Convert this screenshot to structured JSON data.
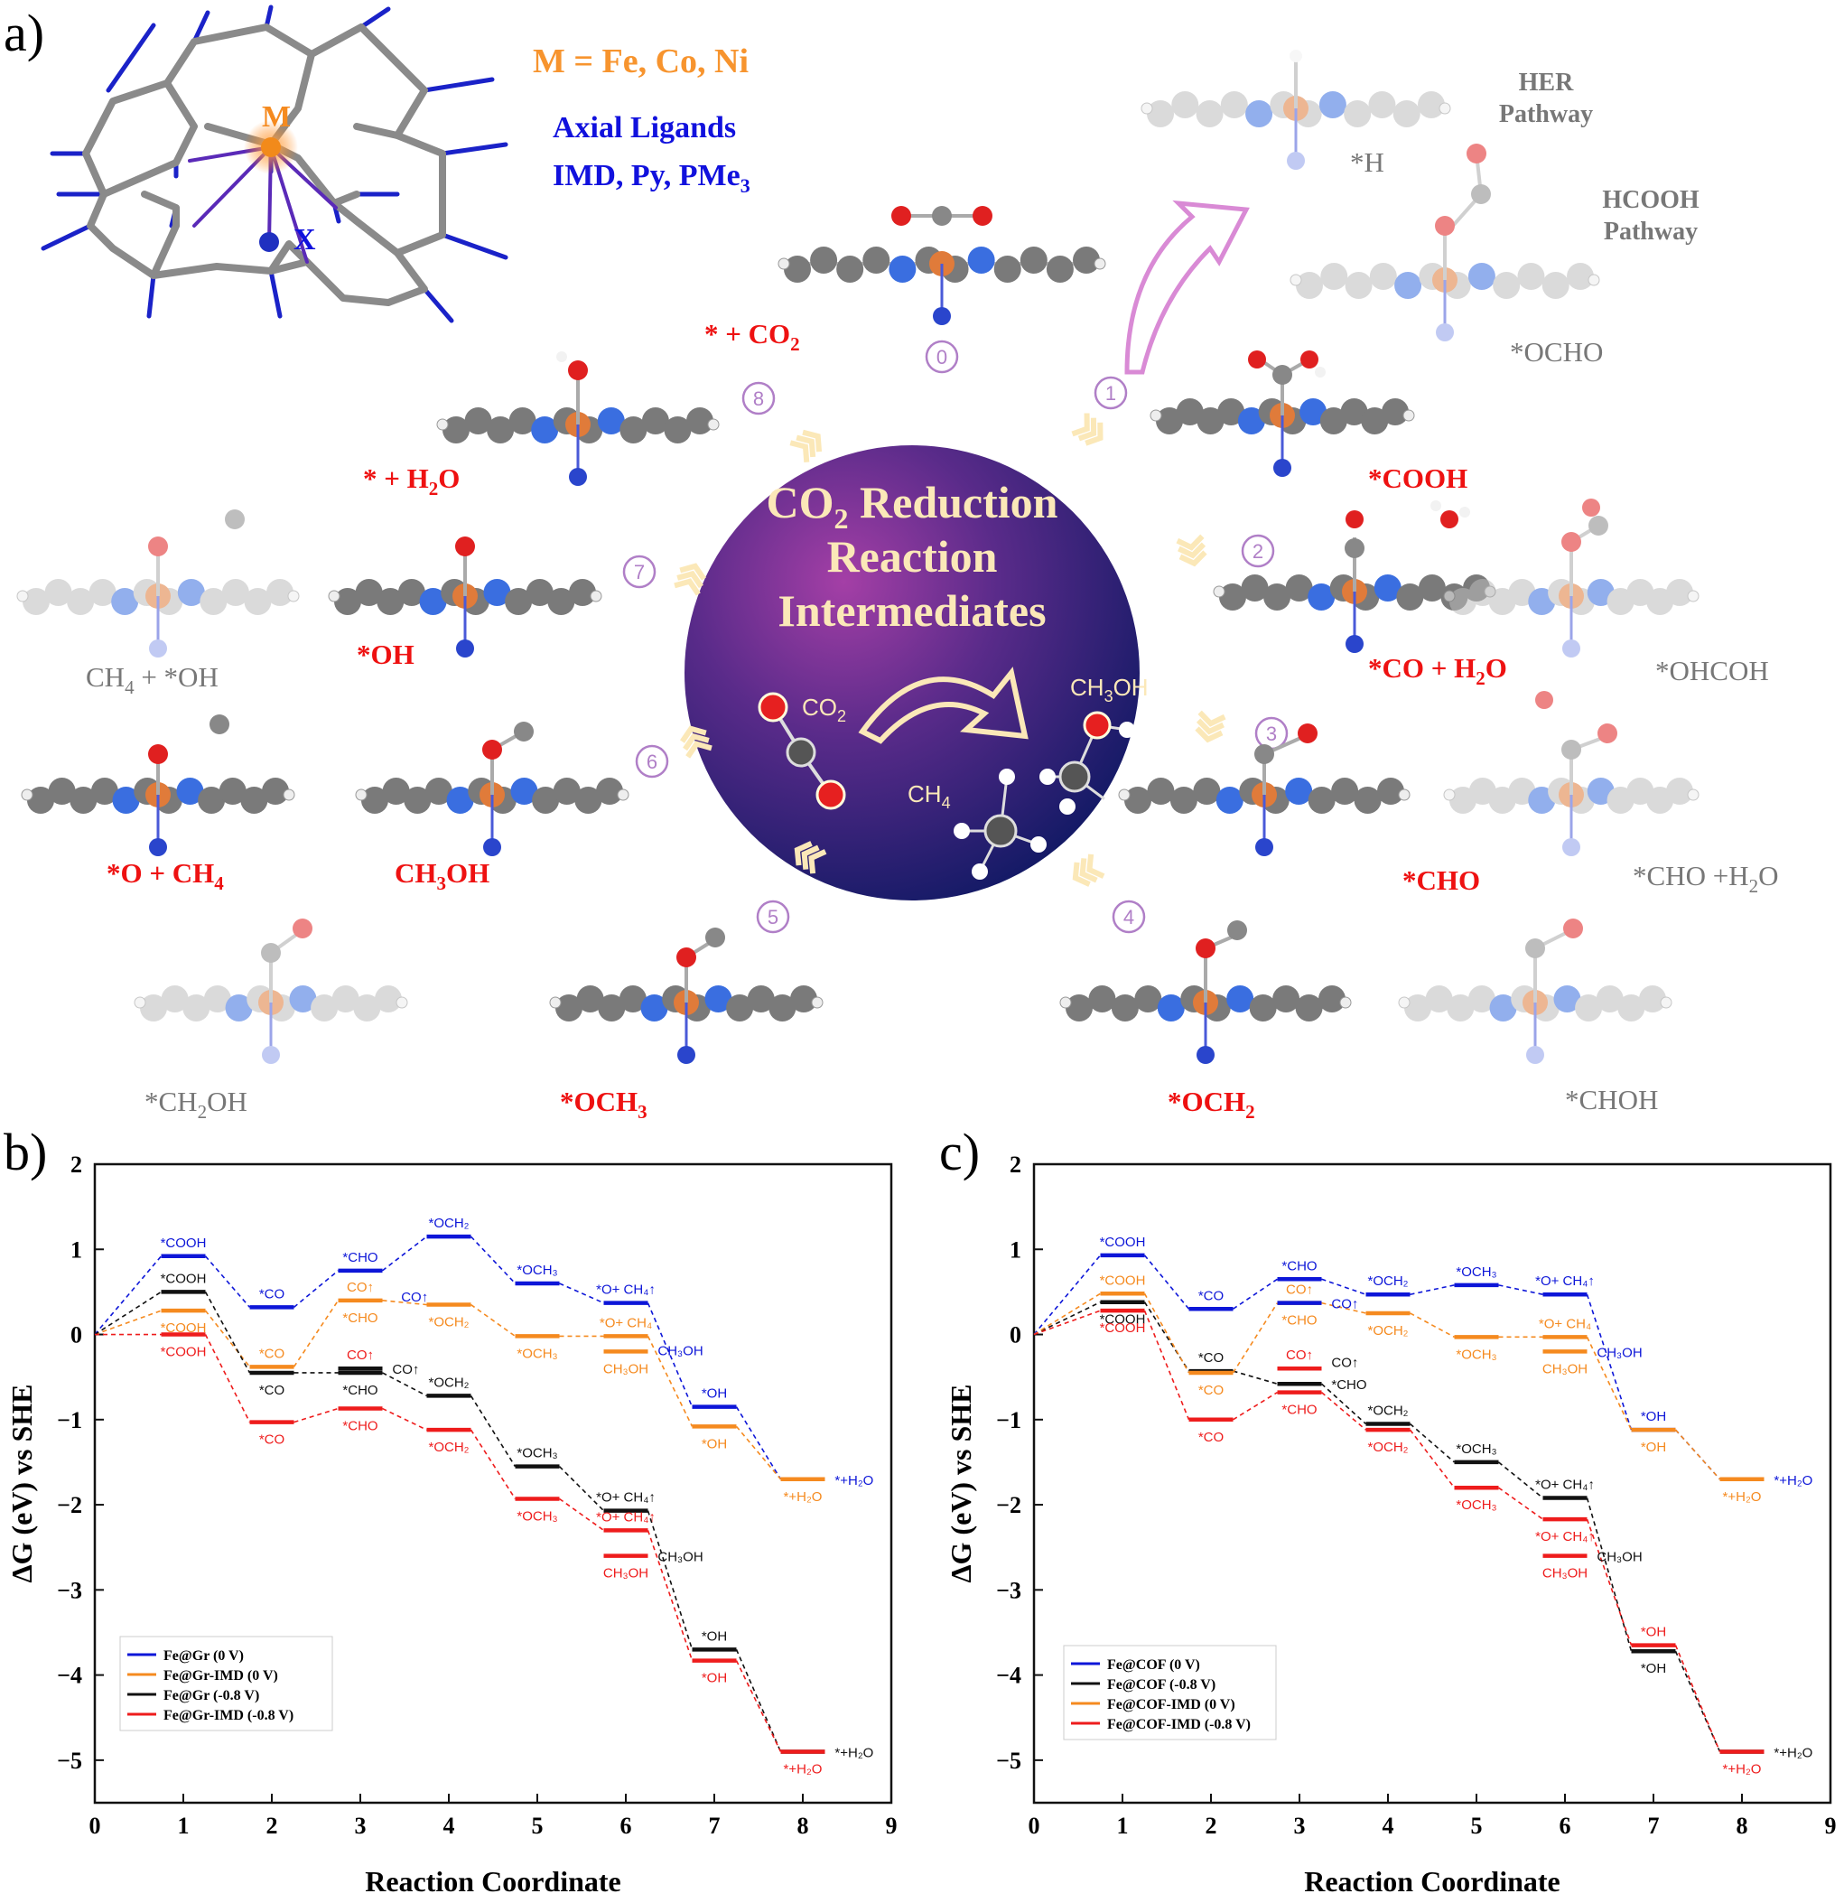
{
  "colors": {
    "red": "#ee1111",
    "gray": "#777777",
    "orange": "#f7942e",
    "blue": "#1111dd",
    "purple": "#b07fc7",
    "navy": "#1a1f6e",
    "magenta": "#7a2a8a",
    "cream": "#fbe8b8",
    "black": "#111111",
    "chart_blue": "#0d16d8",
    "chart_orange": "#f58a1f",
    "chart_red": "#ee1c1c"
  },
  "panel_a": {
    "label": "a)",
    "metal_label": "M",
    "metal_eq": "M = Fe, Co, Ni",
    "axial_title": "Axial Ligands",
    "axial_list": "IMD, Py, PMe",
    "axial_sub": "3",
    "x_label": "X",
    "circle_title": [
      "CO",
      "2",
      " Reduction",
      "Reaction",
      "Intermediates"
    ],
    "inner": {
      "co2": [
        "CO",
        "2"
      ],
      "ch3oh": [
        "CH",
        "3",
        "OH"
      ],
      "ch4": [
        "CH",
        "4"
      ]
    },
    "steps": [
      "0",
      "1",
      "2",
      "3",
      "4",
      "5",
      "6",
      "7",
      "8"
    ],
    "labels": {
      "co2": [
        "* + CO",
        "2"
      ],
      "h2o": [
        "* + H",
        "2",
        "O"
      ],
      "cooh": "*COOH",
      "co_h2o": [
        "*CO + H",
        "2",
        "O"
      ],
      "cho": "*CHO",
      "och2": [
        "*OCH",
        "2"
      ],
      "och3": [
        "*OCH",
        "3"
      ],
      "ch3oh": [
        "CH",
        "3",
        "OH"
      ],
      "o_ch4": [
        "*O + CH",
        "4"
      ],
      "oh": "*OH",
      "ch4_oh": [
        "CH",
        "4",
        " + *OH"
      ],
      "ch2oh": [
        "*CH",
        "2",
        "OH"
      ],
      "choh": "*CHOH",
      "cho_h2o": [
        "*CHO +H",
        "2",
        "O"
      ],
      "ohcoh": "*OHCOH",
      "ocho": "*OCHO",
      "h": "*H",
      "her": [
        "HER",
        "Pathway"
      ],
      "hcooh": [
        "HCOOH",
        "Pathway"
      ]
    }
  },
  "panel_b": {
    "label": "b)",
    "chart_data": {
      "type": "line",
      "xlabel": "Reaction Coordinate",
      "ylabel": "ΔG (eV) vs SHE",
      "xlim": [
        0,
        9
      ],
      "ylim": [
        -5.5,
        2
      ],
      "xticks": [
        "0",
        "1",
        "2",
        "3",
        "4",
        "5",
        "6",
        "7",
        "8",
        "9"
      ],
      "yticks": [
        "2",
        "1",
        "0",
        "−1",
        "−2",
        "−3",
        "−4",
        "−5"
      ],
      "legend": [
        "Fe@Gr (0 V)",
        "Fe@Gr-IMD (0 V)",
        "Fe@Gr (-0.8 V)",
        "Fe@Gr-IMD (-0.8 V)"
      ],
      "legend_position": "bottom-left",
      "series": [
        {
          "name": "Fe@Gr (0 V)",
          "color": "blue",
          "values": [
            0,
            0.92,
            0.32,
            0.75,
            1.15,
            0.6,
            0.37,
            -0.85,
            -1.7
          ]
        },
        {
          "name": "Fe@Gr-IMD (0 V)",
          "color": "orange",
          "values": [
            0,
            0.28,
            -0.38,
            0.4,
            0.35,
            -0.02,
            -0.02,
            -1.08,
            -1.7
          ]
        },
        {
          "name": "Fe@Gr (-0.8 V)",
          "color": "black",
          "values": [
            0,
            0.5,
            -0.45,
            -0.45,
            -0.72,
            -1.55,
            -2.07,
            -3.7,
            -4.9
          ]
        },
        {
          "name": "Fe@Gr-IMD (-0.8 V)",
          "color": "red",
          "values": [
            0,
            0,
            -1.03,
            -0.87,
            -1.12,
            -1.93,
            -2.3,
            -3.83,
            -4.9
          ]
        }
      ],
      "extra_levels": [
        {
          "color": "orange",
          "x": 6,
          "y": -0.2
        },
        {
          "color": "black",
          "x": 3,
          "y": -0.4
        },
        {
          "color": "red",
          "x": 6,
          "y": -2.6
        }
      ],
      "annotations": [
        {
          "t": "*COOH",
          "x": 1,
          "y": 0.92,
          "pos": "a",
          "c": "blue"
        },
        {
          "t": "*CO",
          "x": 2,
          "y": 0.32,
          "pos": "a",
          "c": "blue"
        },
        {
          "t": "*CHO",
          "x": 3,
          "y": 0.75,
          "pos": "a",
          "c": "blue"
        },
        {
          "t": "CO↑",
          "x": 3.4,
          "y": 0.45,
          "pos": "r",
          "c": "blue"
        },
        {
          "t": "*OCH₂",
          "x": 4,
          "y": 1.15,
          "pos": "a",
          "c": "blue"
        },
        {
          "t": "*OCH₃",
          "x": 5,
          "y": 0.6,
          "pos": "a",
          "c": "blue"
        },
        {
          "t": "*O+ CH₄↑",
          "x": 6,
          "y": 0.37,
          "pos": "a",
          "c": "blue"
        },
        {
          "t": "CH₃OH",
          "x": 6.3,
          "y": -0.18,
          "pos": "r",
          "c": "blue"
        },
        {
          "t": "*OH",
          "x": 7,
          "y": -0.85,
          "pos": "a",
          "c": "blue"
        },
        {
          "t": "*+H₂O",
          "x": 8.3,
          "y": -1.7,
          "pos": "r",
          "c": "blue"
        },
        {
          "t": "*COOH",
          "x": 1,
          "y": 0.28,
          "pos": "b",
          "c": "orange"
        },
        {
          "t": "*CO",
          "x": 2,
          "y": -0.38,
          "pos": "a",
          "c": "orange"
        },
        {
          "t": "CO↑",
          "x": 3,
          "y": 0.4,
          "pos": "a",
          "c": "orange"
        },
        {
          "t": "*CHO",
          "x": 3,
          "y": 0.4,
          "pos": "b",
          "c": "orange"
        },
        {
          "t": "*OCH₂",
          "x": 4,
          "y": 0.35,
          "pos": "b",
          "c": "orange"
        },
        {
          "t": "*OCH₃",
          "x": 5,
          "y": -0.02,
          "pos": "b",
          "c": "orange"
        },
        {
          "t": "*O+ CH₄",
          "x": 6,
          "y": -0.02,
          "pos": "a",
          "c": "orange"
        },
        {
          "t": "CH₃OH",
          "x": 6,
          "y": -0.2,
          "pos": "b",
          "c": "orange"
        },
        {
          "t": "*OH",
          "x": 7,
          "y": -1.08,
          "pos": "b",
          "c": "orange"
        },
        {
          "t": "*+H₂O",
          "x": 8,
          "y": -1.7,
          "pos": "b",
          "c": "orange"
        },
        {
          "t": "*COOH",
          "x": 1,
          "y": 0.5,
          "pos": "a",
          "c": "black"
        },
        {
          "t": "*CO",
          "x": 2,
          "y": -0.45,
          "pos": "b",
          "c": "black"
        },
        {
          "t": "CO↑",
          "x": 3.3,
          "y": -0.4,
          "pos": "r",
          "c": "black"
        },
        {
          "t": "*CHO",
          "x": 3,
          "y": -0.45,
          "pos": "b",
          "c": "black"
        },
        {
          "t": "*OCH₂",
          "x": 4,
          "y": -0.72,
          "pos": "a",
          "c": "black"
        },
        {
          "t": "*OCH₃",
          "x": 5,
          "y": -1.55,
          "pos": "a",
          "c": "black"
        },
        {
          "t": "*O+ CH₄↑",
          "x": 6,
          "y": -2.07,
          "pos": "a",
          "c": "black"
        },
        {
          "t": "CH₃OH",
          "x": 6.3,
          "y": -2.6,
          "pos": "r",
          "c": "black"
        },
        {
          "t": "*OH",
          "x": 7,
          "y": -3.7,
          "pos": "a",
          "c": "black"
        },
        {
          "t": "*+H₂O",
          "x": 8.3,
          "y": -4.9,
          "pos": "r",
          "c": "black"
        },
        {
          "t": "*COOH",
          "x": 1,
          "y": 0,
          "pos": "b",
          "c": "red"
        },
        {
          "t": "*CO",
          "x": 2,
          "y": -1.03,
          "pos": "b",
          "c": "red"
        },
        {
          "t": "CO↑",
          "x": 3,
          "y": -0.4,
          "pos": "a",
          "c": "red"
        },
        {
          "t": "*CHO",
          "x": 3,
          "y": -0.87,
          "pos": "b",
          "c": "red"
        },
        {
          "t": "*OCH₂",
          "x": 4,
          "y": -1.12,
          "pos": "b",
          "c": "red"
        },
        {
          "t": "*OCH₃",
          "x": 5,
          "y": -1.93,
          "pos": "b",
          "c": "red"
        },
        {
          "t": "*O+ CH₄↑",
          "x": 6,
          "y": -2.3,
          "pos": "a",
          "c": "red"
        },
        {
          "t": "CH₃OH",
          "x": 6,
          "y": -2.6,
          "pos": "b",
          "c": "red"
        },
        {
          "t": "*OH",
          "x": 7,
          "y": -3.83,
          "pos": "b",
          "c": "red"
        },
        {
          "t": "*+H₂O",
          "x": 8,
          "y": -4.9,
          "pos": "b",
          "c": "red"
        }
      ]
    }
  },
  "panel_c": {
    "label": "c)",
    "chart_data": {
      "type": "line",
      "xlabel": "Reaction Coordinate",
      "ylabel": "ΔG (eV) vs SHE",
      "xlim": [
        0,
        9
      ],
      "ylim": [
        -5.5,
        2
      ],
      "xticks": [
        "0",
        "1",
        "2",
        "3",
        "4",
        "5",
        "6",
        "7",
        "8",
        "9"
      ],
      "yticks": [
        "2",
        "1",
        "0",
        "−1",
        "−2",
        "−3",
        "−4",
        "−5"
      ],
      "legend": [
        "Fe@COF (0 V)",
        "Fe@COF (-0.8 V)",
        "Fe@COF-IMD (0 V)",
        "Fe@COF-IMD (-0.8 V)"
      ],
      "legend_position": "bottom-left",
      "series": [
        {
          "name": "Fe@COF (0 V)",
          "color": "blue",
          "values": [
            0,
            0.93,
            0.3,
            0.65,
            0.47,
            0.58,
            0.47,
            -1.12,
            -1.7
          ]
        },
        {
          "name": "Fe@COF (-0.8 V)",
          "color": "black",
          "values": [
            0,
            0.38,
            -0.43,
            -0.58,
            -1.05,
            -1.5,
            -1.92,
            -3.72,
            -4.9
          ]
        },
        {
          "name": "Fe@COF-IMD (0 V)",
          "color": "orange",
          "values": [
            0,
            0.48,
            -0.45,
            0.37,
            0.25,
            -0.03,
            -0.03,
            -1.12,
            -1.7
          ]
        },
        {
          "name": "Fe@COF-IMD (-0.8 V)",
          "color": "red",
          "values": [
            0,
            0.28,
            -1.0,
            -0.68,
            -1.12,
            -1.8,
            -2.17,
            -3.65,
            -4.9
          ]
        }
      ],
      "extra_levels": [
        {
          "color": "blue",
          "x": 3,
          "y": 0.37
        },
        {
          "color": "orange",
          "x": 6,
          "y": -0.2
        },
        {
          "color": "red",
          "x": 3,
          "y": -0.4
        },
        {
          "color": "red",
          "x": 6,
          "y": -2.6
        }
      ],
      "annotations": [
        {
          "t": "*COOH",
          "x": 1,
          "y": 0.93,
          "pos": "a",
          "c": "blue"
        },
        {
          "t": "*CO",
          "x": 2,
          "y": 0.3,
          "pos": "a",
          "c": "blue"
        },
        {
          "t": "*CHO",
          "x": 3,
          "y": 0.65,
          "pos": "a",
          "c": "blue"
        },
        {
          "t": "CO↑",
          "x": 3.3,
          "y": 0.37,
          "pos": "r",
          "c": "blue"
        },
        {
          "t": "*OCH₂",
          "x": 4,
          "y": 0.47,
          "pos": "a",
          "c": "blue"
        },
        {
          "t": "*OCH₃",
          "x": 5,
          "y": 0.58,
          "pos": "a",
          "c": "blue"
        },
        {
          "t": "*O+ CH₄↑",
          "x": 6,
          "y": 0.47,
          "pos": "a",
          "c": "blue"
        },
        {
          "t": "CH₃OH",
          "x": 6.3,
          "y": -0.2,
          "pos": "r",
          "c": "blue"
        },
        {
          "t": "*OH",
          "x": 7,
          "y": -1.12,
          "pos": "a",
          "c": "blue"
        },
        {
          "t": "*+H₂O",
          "x": 8.3,
          "y": -1.7,
          "pos": "r",
          "c": "blue"
        },
        {
          "t": "*COOH",
          "x": 1,
          "y": 0.48,
          "pos": "a",
          "c": "orange"
        },
        {
          "t": "*CO",
          "x": 2,
          "y": -0.45,
          "pos": "b",
          "c": "orange"
        },
        {
          "t": "CO↑",
          "x": 3,
          "y": 0.37,
          "pos": "a",
          "c": "orange"
        },
        {
          "t": "*CHO",
          "x": 3,
          "y": 0.37,
          "pos": "b",
          "c": "orange"
        },
        {
          "t": "*OCH₂",
          "x": 4,
          "y": 0.25,
          "pos": "b",
          "c": "orange"
        },
        {
          "t": "*OCH₃",
          "x": 5,
          "y": -0.03,
          "pos": "b",
          "c": "orange"
        },
        {
          "t": "*O+ CH₄",
          "x": 6,
          "y": -0.03,
          "pos": "a",
          "c": "orange"
        },
        {
          "t": "CH₃OH",
          "x": 6,
          "y": -0.2,
          "pos": "b",
          "c": "orange"
        },
        {
          "t": "*OH",
          "x": 7,
          "y": -1.12,
          "pos": "b",
          "c": "orange"
        },
        {
          "t": "*+H₂O",
          "x": 8,
          "y": -1.7,
          "pos": "b",
          "c": "orange"
        },
        {
          "t": "*COOH",
          "x": 1,
          "y": 0.38,
          "pos": "b",
          "c": "black"
        },
        {
          "t": "*CO",
          "x": 2,
          "y": -0.43,
          "pos": "a",
          "c": "black"
        },
        {
          "t": "CO↑",
          "x": 3.3,
          "y": -0.32,
          "pos": "r",
          "c": "black"
        },
        {
          "t": "*CHO",
          "x": 3.3,
          "y": -0.58,
          "pos": "r",
          "c": "black"
        },
        {
          "t": "*OCH₂",
          "x": 4,
          "y": -1.05,
          "pos": "a",
          "c": "black"
        },
        {
          "t": "*OCH₃",
          "x": 5,
          "y": -1.5,
          "pos": "a",
          "c": "black"
        },
        {
          "t": "*O+ CH₄↑",
          "x": 6,
          "y": -1.92,
          "pos": "a",
          "c": "black"
        },
        {
          "t": "CH₃OH",
          "x": 6.3,
          "y": -2.6,
          "pos": "r",
          "c": "black"
        },
        {
          "t": "*OH",
          "x": 7,
          "y": -3.72,
          "pos": "b",
          "c": "black"
        },
        {
          "t": "*+H₂O",
          "x": 8.3,
          "y": -4.9,
          "pos": "r",
          "c": "black"
        },
        {
          "t": "*COOH",
          "x": 1,
          "y": 0.28,
          "pos": "b",
          "c": "red"
        },
        {
          "t": "*CO",
          "x": 2,
          "y": -1.0,
          "pos": "b",
          "c": "red"
        },
        {
          "t": "CO↑",
          "x": 3,
          "y": -0.4,
          "pos": "a",
          "c": "red"
        },
        {
          "t": "*CHO",
          "x": 3,
          "y": -0.68,
          "pos": "b",
          "c": "red"
        },
        {
          "t": "*OCH₂",
          "x": 4,
          "y": -1.12,
          "pos": "b",
          "c": "red"
        },
        {
          "t": "*OCH₃",
          "x": 5,
          "y": -1.8,
          "pos": "b",
          "c": "red"
        },
        {
          "t": "*O+ CH₄↑",
          "x": 6,
          "y": -2.17,
          "pos": "b",
          "c": "red"
        },
        {
          "t": "CH₃OH",
          "x": 6,
          "y": -2.6,
          "pos": "b",
          "c": "red"
        },
        {
          "t": "*OH",
          "x": 7,
          "y": -3.65,
          "pos": "a",
          "c": "red"
        },
        {
          "t": "*+H₂O",
          "x": 8,
          "y": -4.9,
          "pos": "b",
          "c": "red"
        }
      ]
    }
  }
}
